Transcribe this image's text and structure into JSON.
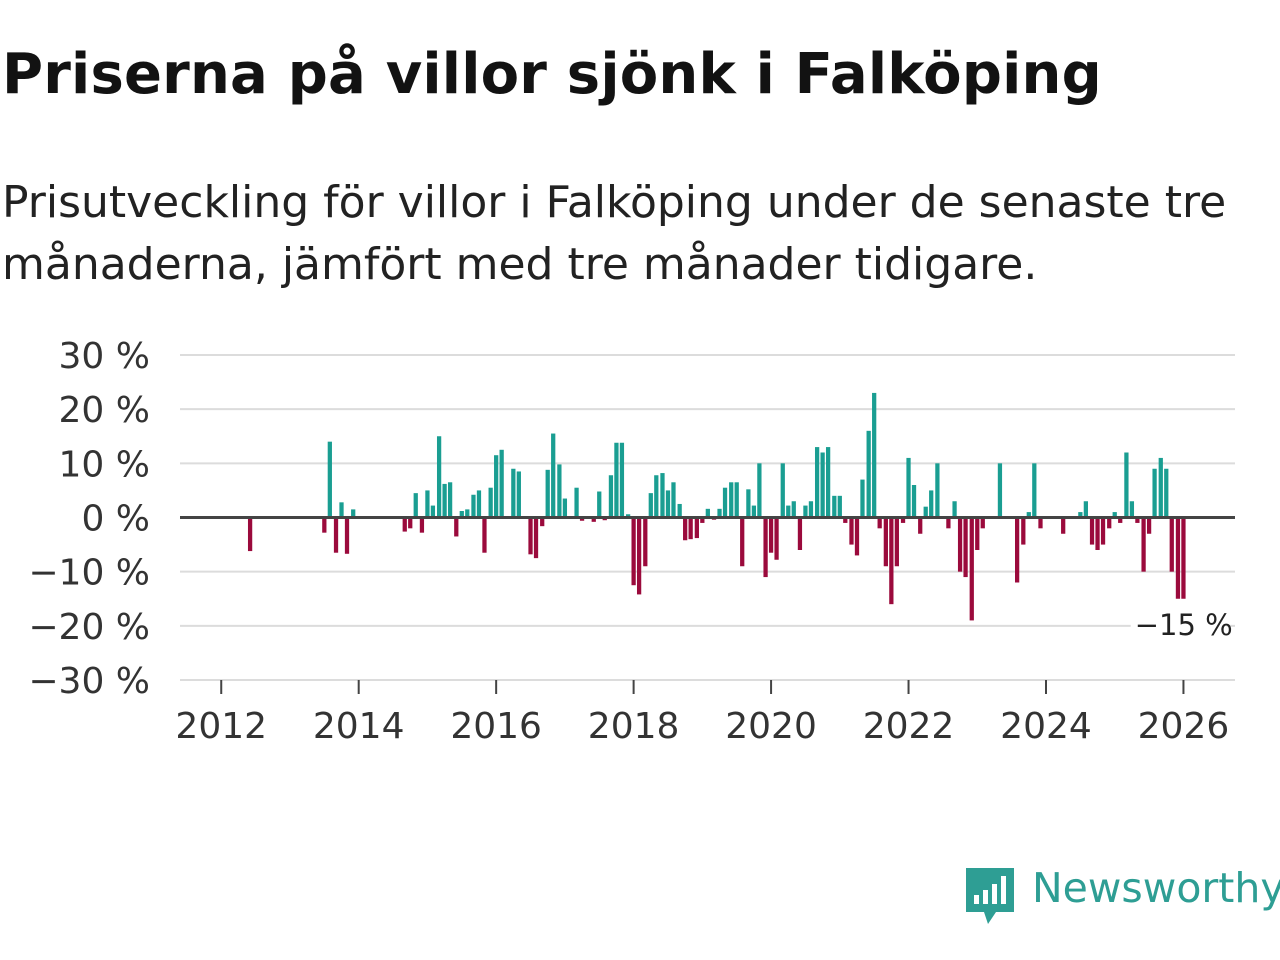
{
  "header": {
    "title": "Priserna på villor sjönk i Falköping",
    "subtitle": "Prisutveckling för villor i Falköping under de senaste tre månaderna, jämfört med tre månader tidigare."
  },
  "brand": {
    "name": "Newsworthy",
    "icon": "newsworthy-logo-icon",
    "color": "#2e9e94"
  },
  "colors": {
    "positive": "#1a9e92",
    "negative": "#9b0a3c",
    "grid": "#dcdcdc",
    "zero_line": "#444444",
    "axis_text": "#333333"
  },
  "chart_data": {
    "type": "bar",
    "title": "Priserna på villor sjönk i Falköping",
    "xlabel": "",
    "ylabel": "",
    "ylim": [
      -30,
      30
    ],
    "xlim": [
      2011.4,
      2026.75
    ],
    "grid": true,
    "legend": "none",
    "y_ticks": [
      {
        "value": 30,
        "label": "30 %"
      },
      {
        "value": 20,
        "label": "20 %"
      },
      {
        "value": 10,
        "label": "10 %"
      },
      {
        "value": 0,
        "label": "0 %"
      },
      {
        "value": -10,
        "label": "−10 %"
      },
      {
        "value": -20,
        "label": "−20 %"
      },
      {
        "value": -30,
        "label": "−30 %"
      }
    ],
    "x_ticks": [
      {
        "value": 2012,
        "label": "2012"
      },
      {
        "value": 2014,
        "label": "2014"
      },
      {
        "value": 2016,
        "label": "2016"
      },
      {
        "value": 2018,
        "label": "2018"
      },
      {
        "value": 2020,
        "label": "2020"
      },
      {
        "value": 2022,
        "label": "2022"
      },
      {
        "value": 2024,
        "label": "2024"
      },
      {
        "value": 2026,
        "label": "2026"
      }
    ],
    "annotation": {
      "label": "−15 %",
      "x": 2025.96,
      "y": -15
    },
    "bar_width_years": 0.062,
    "points": [
      {
        "x": 2012.42,
        "y": -6.2
      },
      {
        "x": 2013.5,
        "y": -2.8
      },
      {
        "x": 2013.58,
        "y": 14.0
      },
      {
        "x": 2013.67,
        "y": -6.5
      },
      {
        "x": 2013.75,
        "y": 2.8
      },
      {
        "x": 2013.83,
        "y": -6.7
      },
      {
        "x": 2013.92,
        "y": 1.5
      },
      {
        "x": 2014.67,
        "y": -2.6
      },
      {
        "x": 2014.75,
        "y": -2.0
      },
      {
        "x": 2014.83,
        "y": 4.5
      },
      {
        "x": 2014.92,
        "y": -2.8
      },
      {
        "x": 2015.0,
        "y": 5.0
      },
      {
        "x": 2015.08,
        "y": 2.2
      },
      {
        "x": 2015.17,
        "y": 15.0
      },
      {
        "x": 2015.25,
        "y": 6.2
      },
      {
        "x": 2015.33,
        "y": 6.5
      },
      {
        "x": 2015.42,
        "y": -3.5
      },
      {
        "x": 2015.5,
        "y": 1.2
      },
      {
        "x": 2015.58,
        "y": 1.5
      },
      {
        "x": 2015.67,
        "y": 4.2
      },
      {
        "x": 2015.75,
        "y": 5.0
      },
      {
        "x": 2015.83,
        "y": -6.5
      },
      {
        "x": 2015.92,
        "y": 5.5
      },
      {
        "x": 2016.0,
        "y": 11.5
      },
      {
        "x": 2016.08,
        "y": 12.5
      },
      {
        "x": 2016.25,
        "y": 9.0
      },
      {
        "x": 2016.33,
        "y": 8.5
      },
      {
        "x": 2016.5,
        "y": -6.8
      },
      {
        "x": 2016.58,
        "y": -7.5
      },
      {
        "x": 2016.67,
        "y": -1.6
      },
      {
        "x": 2016.75,
        "y": 8.8
      },
      {
        "x": 2016.83,
        "y": 15.5
      },
      {
        "x": 2016.92,
        "y": 9.8
      },
      {
        "x": 2017.0,
        "y": 3.5
      },
      {
        "x": 2017.17,
        "y": 5.5
      },
      {
        "x": 2017.25,
        "y": -0.6
      },
      {
        "x": 2017.42,
        "y": -0.8
      },
      {
        "x": 2017.5,
        "y": 4.8
      },
      {
        "x": 2017.58,
        "y": -0.5
      },
      {
        "x": 2017.67,
        "y": 7.8
      },
      {
        "x": 2017.75,
        "y": 13.8
      },
      {
        "x": 2017.83,
        "y": 13.8
      },
      {
        "x": 2017.92,
        "y": 0.6
      },
      {
        "x": 2018.0,
        "y": -12.5
      },
      {
        "x": 2018.08,
        "y": -14.2
      },
      {
        "x": 2018.17,
        "y": -9.0
      },
      {
        "x": 2018.25,
        "y": 4.5
      },
      {
        "x": 2018.33,
        "y": 7.8
      },
      {
        "x": 2018.42,
        "y": 8.2
      },
      {
        "x": 2018.5,
        "y": 5.0
      },
      {
        "x": 2018.58,
        "y": 6.5
      },
      {
        "x": 2018.67,
        "y": 2.5
      },
      {
        "x": 2018.75,
        "y": -4.2
      },
      {
        "x": 2018.83,
        "y": -4.0
      },
      {
        "x": 2018.92,
        "y": -3.8
      },
      {
        "x": 2019.0,
        "y": -1.0
      },
      {
        "x": 2019.08,
        "y": 1.6
      },
      {
        "x": 2019.17,
        "y": -0.4
      },
      {
        "x": 2019.25,
        "y": 1.6
      },
      {
        "x": 2019.33,
        "y": 5.5
      },
      {
        "x": 2019.42,
        "y": 6.5
      },
      {
        "x": 2019.5,
        "y": 6.5
      },
      {
        "x": 2019.58,
        "y": -9.0
      },
      {
        "x": 2019.67,
        "y": 5.2
      },
      {
        "x": 2019.75,
        "y": 2.2
      },
      {
        "x": 2019.83,
        "y": 10.0
      },
      {
        "x": 2019.92,
        "y": -11.0
      },
      {
        "x": 2020.0,
        "y": -6.5
      },
      {
        "x": 2020.08,
        "y": -7.8
      },
      {
        "x": 2020.17,
        "y": 10.0
      },
      {
        "x": 2020.25,
        "y": 2.2
      },
      {
        "x": 2020.33,
        "y": 3.0
      },
      {
        "x": 2020.42,
        "y": -6.0
      },
      {
        "x": 2020.5,
        "y": 2.2
      },
      {
        "x": 2020.58,
        "y": 3.0
      },
      {
        "x": 2020.67,
        "y": 13.0
      },
      {
        "x": 2020.75,
        "y": 12.0
      },
      {
        "x": 2020.83,
        "y": 13.0
      },
      {
        "x": 2020.92,
        "y": 4.0
      },
      {
        "x": 2021.0,
        "y": 4.0
      },
      {
        "x": 2021.08,
        "y": -1.0
      },
      {
        "x": 2021.17,
        "y": -5.0
      },
      {
        "x": 2021.25,
        "y": -7.0
      },
      {
        "x": 2021.33,
        "y": 7.0
      },
      {
        "x": 2021.42,
        "y": 16.0
      },
      {
        "x": 2021.5,
        "y": 23.0
      },
      {
        "x": 2021.58,
        "y": -2.0
      },
      {
        "x": 2021.67,
        "y": -9.0
      },
      {
        "x": 2021.75,
        "y": -16.0
      },
      {
        "x": 2021.83,
        "y": -9.0
      },
      {
        "x": 2021.92,
        "y": -1.0
      },
      {
        "x": 2022.0,
        "y": 11.0
      },
      {
        "x": 2022.08,
        "y": 6.0
      },
      {
        "x": 2022.17,
        "y": -3.0
      },
      {
        "x": 2022.25,
        "y": 2.0
      },
      {
        "x": 2022.33,
        "y": 5.0
      },
      {
        "x": 2022.42,
        "y": 10.0
      },
      {
        "x": 2022.58,
        "y": -2.0
      },
      {
        "x": 2022.67,
        "y": 3.0
      },
      {
        "x": 2022.75,
        "y": -10.0
      },
      {
        "x": 2022.83,
        "y": -11.0
      },
      {
        "x": 2022.92,
        "y": -19.0
      },
      {
        "x": 2023.0,
        "y": -6.0
      },
      {
        "x": 2023.08,
        "y": -2.0
      },
      {
        "x": 2023.33,
        "y": 10.0
      },
      {
        "x": 2023.58,
        "y": -12.0
      },
      {
        "x": 2023.67,
        "y": -5.0
      },
      {
        "x": 2023.75,
        "y": 1.0
      },
      {
        "x": 2023.83,
        "y": 10.0
      },
      {
        "x": 2023.92,
        "y": -2.0
      },
      {
        "x": 2024.25,
        "y": -3.0
      },
      {
        "x": 2024.5,
        "y": 1.0
      },
      {
        "x": 2024.58,
        "y": 3.0
      },
      {
        "x": 2024.67,
        "y": -5.0
      },
      {
        "x": 2024.75,
        "y": -6.0
      },
      {
        "x": 2024.83,
        "y": -5.0
      },
      {
        "x": 2024.92,
        "y": -2.0
      },
      {
        "x": 2025.0,
        "y": 1.0
      },
      {
        "x": 2025.08,
        "y": -1.0
      },
      {
        "x": 2025.17,
        "y": 12.0
      },
      {
        "x": 2025.25,
        "y": 3.0
      },
      {
        "x": 2025.33,
        "y": -1.0
      },
      {
        "x": 2025.42,
        "y": -10.0
      },
      {
        "x": 2025.5,
        "y": -3.0
      },
      {
        "x": 2025.58,
        "y": 9.0
      },
      {
        "x": 2025.67,
        "y": 11.0
      },
      {
        "x": 2025.75,
        "y": 9.0
      },
      {
        "x": 2025.83,
        "y": -10.0
      },
      {
        "x": 2025.92,
        "y": -15.0
      },
      {
        "x": 2026.0,
        "y": -15.0
      }
    ]
  }
}
